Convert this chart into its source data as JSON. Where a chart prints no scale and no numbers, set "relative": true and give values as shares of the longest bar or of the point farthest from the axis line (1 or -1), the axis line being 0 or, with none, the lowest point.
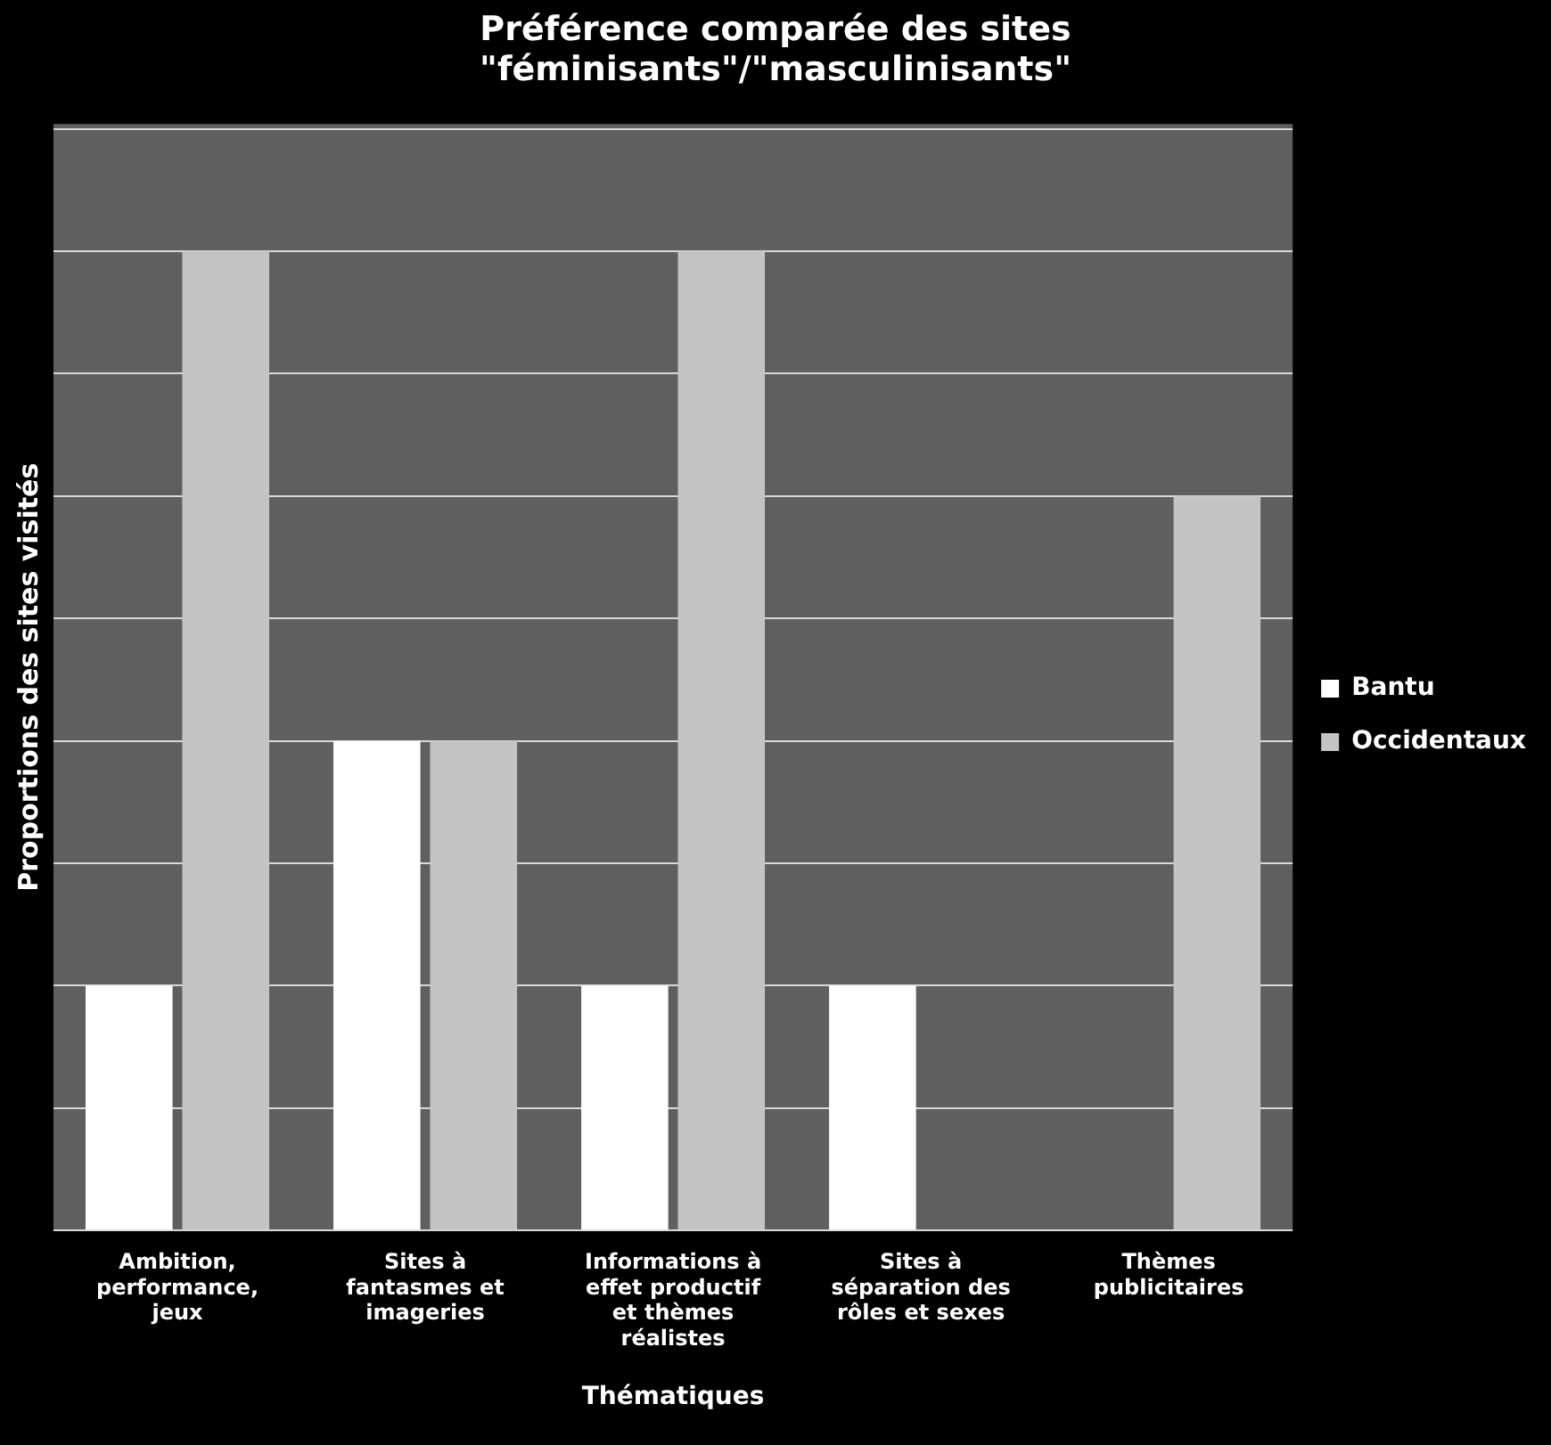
{
  "chart_data": {
    "type": "bar",
    "title": "Préférence comparée des sites \"féminisants\"/\"masculinisants\"",
    "xlabel": "Thématiques",
    "ylabel": "Proportions des sites visités",
    "relative": true,
    "grid": "y",
    "legend": "right",
    "categories": [
      "Ambition, performance, jeux",
      "Sites à fantasmes et imageries",
      "Informations à effet productif et thèmes réalistes",
      "Sites à séparation des rôles et sexes",
      "Thèmes publicitaires"
    ],
    "series": [
      {
        "name": "Bantu",
        "color": "#ffffff",
        "values": [
          0.25,
          0.5,
          0.25,
          0.25,
          0
        ]
      },
      {
        "name": "Occidentaux",
        "color": "#c4c4c4",
        "values": [
          1,
          0.5,
          1,
          0,
          0.75
        ]
      }
    ]
  }
}
